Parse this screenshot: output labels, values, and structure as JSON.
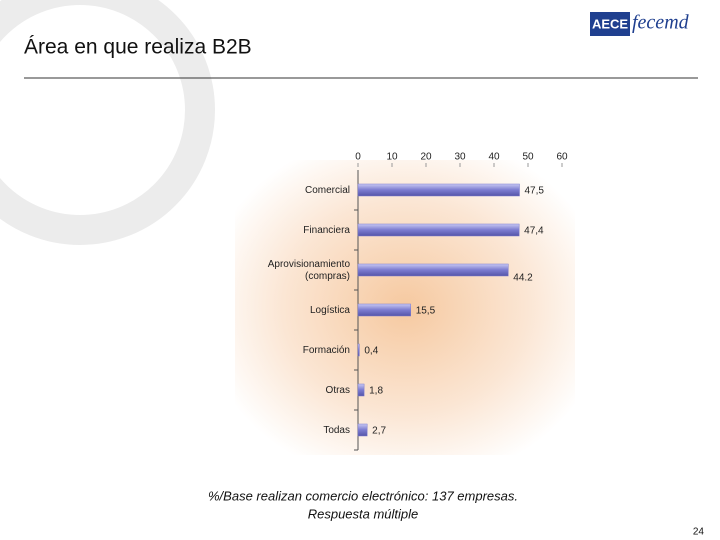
{
  "chart_data": {
    "type": "barh",
    "title": "Área en que realiza B2B",
    "categories": [
      "Comercial",
      "Financiera",
      "Aprovisionamiento (compras)",
      "Logística",
      "Formación",
      "Otras",
      "Todas"
    ],
    "values": [
      47.5,
      47.4,
      44.2,
      15.5,
      0.4,
      1.8,
      2.7
    ],
    "value_labels": [
      "47,5",
      "47,4",
      "44.2",
      "15,5",
      "0,4",
      "1,8",
      "2,7"
    ],
    "color": "#7b7bd0",
    "xlim": [
      0,
      60
    ],
    "xticks": [
      0,
      10,
      20,
      30,
      40,
      50,
      60
    ],
    "footnote": [
      "%/Base realizan comercio electrónico: 137 empresas.",
      "Respuesta múltiple"
    ]
  },
  "logo": [
    "AECE",
    "fecemd"
  ],
  "page_number": "24"
}
